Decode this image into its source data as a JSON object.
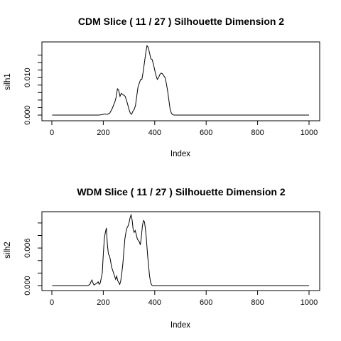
{
  "chart_data": [
    {
      "type": "line",
      "title": "CDM Slice ( 11 / 27 )  Silhouette Dimension 2",
      "xlabel": "Index",
      "ylabel": "silh1",
      "xlim": [
        0,
        1000
      ],
      "ylim": [
        0,
        0.0195
      ],
      "xticks": [
        0,
        200,
        400,
        600,
        800,
        1000
      ],
      "yticks": [
        0.0,
        0.002,
        0.004,
        0.006,
        0.008,
        0.01,
        0.012,
        0.014,
        0.016
      ],
      "ytick_labels": [
        "0.000",
        "",
        "",
        "",
        "",
        "0.010",
        "",
        "",
        ""
      ],
      "line_color": "#000000",
      "series": [
        {
          "x": [
            1,
            150,
            180,
            195,
            205,
            215,
            225,
            235,
            245,
            250,
            255,
            260,
            265,
            270,
            275,
            280,
            285,
            290,
            295,
            300,
            305,
            310,
            315,
            320,
            325,
            330,
            335,
            340,
            345,
            350,
            355,
            360,
            365,
            370,
            375,
            380,
            385,
            390,
            395,
            400,
            405,
            410,
            415,
            420,
            425,
            430,
            435,
            440,
            445,
            450,
            455,
            460,
            465,
            470,
            475,
            480,
            485,
            490,
            495,
            500,
            550,
            1000
          ],
          "values": [
            0,
            0,
            0,
            0.0001,
            0.0003,
            0.0002,
            0.0005,
            0.0018,
            0.0035,
            0.0048,
            0.007,
            0.0066,
            0.005,
            0.0058,
            0.0055,
            0.0053,
            0.005,
            0.004,
            0.0028,
            0.0015,
            0.0005,
            0.0002,
            0.001,
            0.0015,
            0.0025,
            0.005,
            0.0075,
            0.0085,
            0.0095,
            0.0095,
            0.0115,
            0.014,
            0.0165,
            0.0185,
            0.018,
            0.0165,
            0.015,
            0.0148,
            0.0135,
            0.012,
            0.0105,
            0.0095,
            0.01,
            0.0108,
            0.0112,
            0.011,
            0.0105,
            0.01,
            0.0085,
            0.0065,
            0.004,
            0.0015,
            0.0005,
            0.0001,
            0,
            0,
            0,
            0,
            0,
            0,
            0,
            0
          ]
        }
      ]
    },
    {
      "type": "line",
      "title": "WDM Slice ( 11 / 27 )  Silhouette Dimension 2",
      "xlabel": "Index",
      "ylabel": "silh2",
      "xlim": [
        0,
        1000
      ],
      "ylim": [
        0,
        0.0118
      ],
      "xticks": [
        0,
        200,
        400,
        600,
        800,
        1000
      ],
      "yticks": [
        0.0,
        0.002,
        0.004,
        0.006,
        0.008,
        0.01
      ],
      "ytick_labels": [
        "0.000",
        "",
        "",
        "0.006",
        "",
        ""
      ],
      "line_color": "#000000",
      "series": [
        {
          "x": [
            1,
            140,
            148,
            152,
            156,
            160,
            164,
            168,
            172,
            176,
            180,
            184,
            188,
            192,
            196,
            200,
            204,
            208,
            212,
            216,
            220,
            224,
            228,
            232,
            236,
            240,
            244,
            248,
            252,
            256,
            260,
            264,
            268,
            272,
            276,
            280,
            284,
            288,
            292,
            296,
            300,
            304,
            308,
            312,
            316,
            320,
            324,
            328,
            332,
            336,
            340,
            344,
            348,
            352,
            356,
            360,
            364,
            368,
            372,
            376,
            380,
            384,
            388,
            392,
            396,
            400,
            404,
            408,
            412,
            416,
            420,
            430,
            500,
            1000
          ],
          "values": [
            0,
            0,
            0.0002,
            0.0006,
            0.0009,
            0.0004,
            0.0001,
            0.0002,
            0.0003,
            0.0004,
            0.0006,
            0.0002,
            0.0004,
            0.0012,
            0.002,
            0.005,
            0.0075,
            0.0085,
            0.0092,
            0.0065,
            0.005,
            0.0048,
            0.004,
            0.003,
            0.0025,
            0.002,
            0.0015,
            0.001,
            0.0015,
            0.0008,
            0.0005,
            0.0002,
            0.0008,
            0.002,
            0.0035,
            0.0055,
            0.0075,
            0.0085,
            0.0092,
            0.0095,
            0.01,
            0.0108,
            0.0113,
            0.0105,
            0.009,
            0.0085,
            0.0088,
            0.0082,
            0.0075,
            0.0072,
            0.007,
            0.0065,
            0.0078,
            0.0095,
            0.0104,
            0.0102,
            0.009,
            0.0072,
            0.005,
            0.0032,
            0.0015,
            0.0005,
            0.0001,
            0,
            0,
            0,
            0,
            0,
            0,
            0,
            0,
            0,
            0,
            0
          ]
        }
      ]
    }
  ]
}
